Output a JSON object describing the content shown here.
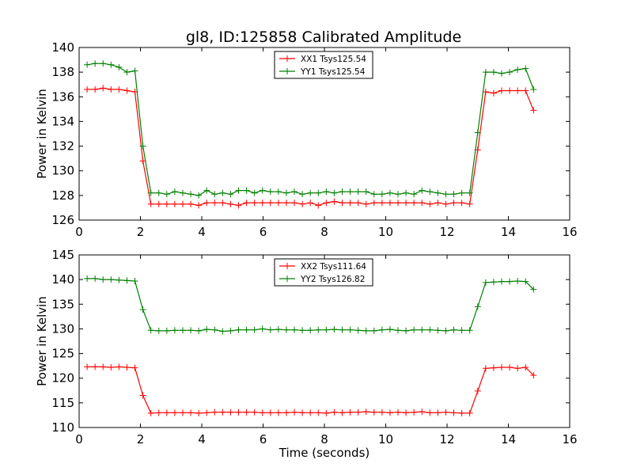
{
  "figure": {
    "title": "gl8, ID:125858 Calibrated Amplitude"
  },
  "chart_data": [
    {
      "type": "line",
      "title": "gl8, ID:125858 Calibrated Amplitude",
      "xlabel": "",
      "ylabel": "Power in Kelvin",
      "xlim": [
        0,
        16
      ],
      "ylim": [
        126,
        140
      ],
      "xticks": [
        0,
        2,
        4,
        6,
        8,
        10,
        12,
        14,
        16
      ],
      "yticks": [
        126,
        128,
        130,
        132,
        134,
        136,
        138,
        140
      ],
      "grid": false,
      "legend": "top-center",
      "x": [
        0.26,
        0.52,
        0.78,
        1.04,
        1.3,
        1.56,
        1.82,
        2.08,
        2.34,
        2.6,
        2.86,
        3.12,
        3.38,
        3.64,
        3.9,
        4.16,
        4.42,
        4.68,
        4.94,
        5.2,
        5.46,
        5.72,
        5.98,
        6.24,
        6.5,
        6.76,
        7.02,
        7.28,
        7.54,
        7.8,
        8.06,
        8.32,
        8.58,
        8.84,
        9.1,
        9.36,
        9.62,
        9.88,
        10.14,
        10.4,
        10.66,
        10.92,
        11.18,
        11.44,
        11.7,
        11.96,
        12.22,
        12.48,
        12.74,
        13.0,
        13.26,
        13.52,
        13.78,
        14.04,
        14.3,
        14.56,
        14.82
      ],
      "series": [
        {
          "name": "XX1 Tsys125.54",
          "color": "#ff0000",
          "values": [
            136.6,
            136.6,
            136.7,
            136.6,
            136.6,
            136.5,
            136.4,
            130.8,
            127.3,
            127.3,
            127.3,
            127.3,
            127.3,
            127.3,
            127.2,
            127.4,
            127.4,
            127.4,
            127.3,
            127.2,
            127.4,
            127.4,
            127.4,
            127.4,
            127.4,
            127.4,
            127.4,
            127.3,
            127.4,
            127.2,
            127.4,
            127.5,
            127.4,
            127.4,
            127.4,
            127.3,
            127.4,
            127.4,
            127.4,
            127.4,
            127.4,
            127.4,
            127.4,
            127.3,
            127.4,
            127.3,
            127.4,
            127.4,
            127.3,
            131.7,
            136.4,
            136.3,
            136.5,
            136.5,
            136.5,
            136.5,
            134.9
          ]
        },
        {
          "name": "YY1 Tsys125.54",
          "color": "#008000",
          "values": [
            138.6,
            138.7,
            138.7,
            138.6,
            138.4,
            138.0,
            138.1,
            132.0,
            128.2,
            128.2,
            128.1,
            128.3,
            128.2,
            128.1,
            128.0,
            128.4,
            128.1,
            128.2,
            128.1,
            128.4,
            128.4,
            128.2,
            128.4,
            128.3,
            128.3,
            128.2,
            128.3,
            128.1,
            128.2,
            128.2,
            128.3,
            128.2,
            128.3,
            128.3,
            128.3,
            128.3,
            128.1,
            128.1,
            128.2,
            128.1,
            128.2,
            128.1,
            128.4,
            128.3,
            128.2,
            128.1,
            128.1,
            128.2,
            128.2,
            133.1,
            138.0,
            138.0,
            137.9,
            138.0,
            138.2,
            138.3,
            136.6
          ]
        }
      ]
    },
    {
      "type": "line",
      "title": "",
      "xlabel": "Time (seconds)",
      "ylabel": "Power in Kelvin",
      "xlim": [
        0,
        16
      ],
      "ylim": [
        110,
        145
      ],
      "xticks": [
        0,
        2,
        4,
        6,
        8,
        10,
        12,
        14,
        16
      ],
      "yticks": [
        110,
        115,
        120,
        125,
        130,
        135,
        140,
        145
      ],
      "grid": false,
      "legend": "top-center",
      "x": [
        0.26,
        0.52,
        0.78,
        1.04,
        1.3,
        1.56,
        1.82,
        2.08,
        2.34,
        2.6,
        2.86,
        3.12,
        3.38,
        3.64,
        3.9,
        4.16,
        4.42,
        4.68,
        4.94,
        5.2,
        5.46,
        5.72,
        5.98,
        6.24,
        6.5,
        6.76,
        7.02,
        7.28,
        7.54,
        7.8,
        8.06,
        8.32,
        8.58,
        8.84,
        9.1,
        9.36,
        9.62,
        9.88,
        10.14,
        10.4,
        10.66,
        10.92,
        11.18,
        11.44,
        11.7,
        11.96,
        12.22,
        12.48,
        12.74,
        13.0,
        13.26,
        13.52,
        13.78,
        14.04,
        14.3,
        14.56,
        14.82
      ],
      "series": [
        {
          "name": "XX2 Tsys111.64",
          "color": "#ff0000",
          "values": [
            122.3,
            122.3,
            122.3,
            122.2,
            122.3,
            122.2,
            122.1,
            116.5,
            112.9,
            113.0,
            113.0,
            113.0,
            113.0,
            113.0,
            112.9,
            113.0,
            113.1,
            113.1,
            113.1,
            113.1,
            113.1,
            113.1,
            113.0,
            113.0,
            113.0,
            113.0,
            113.1,
            113.0,
            113.0,
            113.0,
            112.9,
            113.1,
            113.0,
            113.1,
            113.1,
            113.2,
            113.1,
            113.1,
            113.0,
            113.1,
            113.0,
            113.1,
            113.2,
            113.0,
            113.0,
            113.1,
            113.0,
            112.9,
            112.9,
            117.4,
            122.0,
            122.1,
            122.2,
            122.2,
            122.0,
            122.2,
            120.6
          ]
        },
        {
          "name": "YY2 Tsys126.82",
          "color": "#008000",
          "values": [
            140.2,
            140.2,
            140.0,
            140.0,
            139.9,
            139.8,
            139.7,
            133.9,
            129.7,
            129.6,
            129.6,
            129.7,
            129.7,
            129.7,
            129.6,
            129.9,
            129.8,
            129.5,
            129.6,
            129.8,
            129.8,
            129.8,
            130.0,
            129.8,
            129.9,
            129.8,
            129.8,
            129.7,
            129.7,
            129.8,
            129.8,
            129.9,
            129.8,
            129.8,
            129.7,
            129.6,
            129.6,
            129.8,
            129.9,
            129.7,
            129.6,
            129.8,
            129.8,
            129.8,
            129.7,
            129.6,
            129.8,
            129.7,
            129.7,
            134.5,
            139.4,
            139.5,
            139.6,
            139.6,
            139.7,
            139.6,
            138.0
          ]
        }
      ]
    }
  ]
}
